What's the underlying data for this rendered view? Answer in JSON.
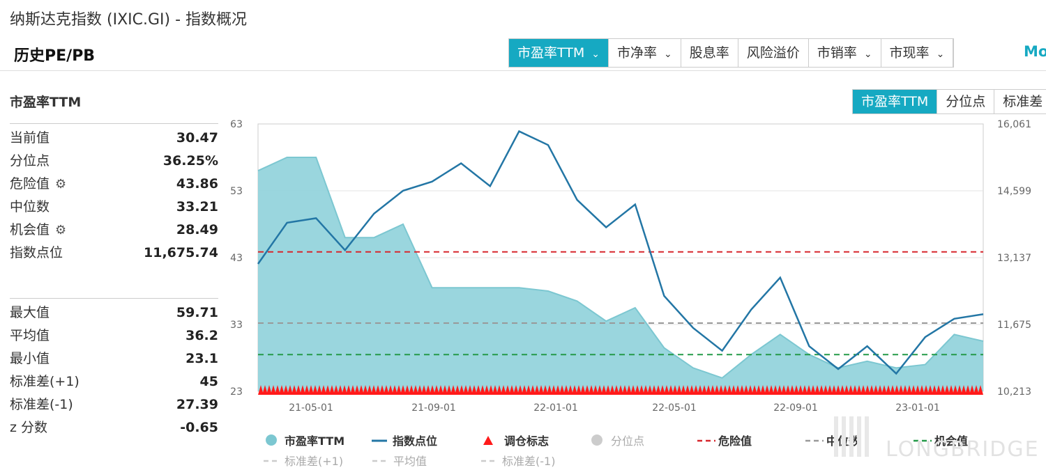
{
  "header": {
    "title": "纳斯达克指数 (IXIC.GI) - 指数概况",
    "section": "历史PE/PB",
    "metric_tabs": [
      {
        "label": "市盈率TTM",
        "chevron": true,
        "active": true
      },
      {
        "label": "市净率",
        "chevron": true,
        "active": false
      },
      {
        "label": "股息率",
        "chevron": false,
        "active": false
      },
      {
        "label": "风险溢价",
        "chevron": false,
        "active": false
      },
      {
        "label": "市销率",
        "chevron": true,
        "active": false
      },
      {
        "label": "市现率",
        "chevron": true,
        "active": false
      }
    ],
    "more": "Mo"
  },
  "view_tabs": [
    "市盈率TTM",
    "分位点",
    "标准差"
  ],
  "stats": {
    "title": "市盈率TTM",
    "current": [
      {
        "label": "当前值",
        "value": "30.47",
        "gear": false
      },
      {
        "label": "分位点",
        "value": "36.25%",
        "gear": false
      },
      {
        "label": "危险值",
        "value": "43.86",
        "gear": true
      },
      {
        "label": "中位数",
        "value": "33.21",
        "gear": false
      },
      {
        "label": "机会值",
        "value": "28.49",
        "gear": true
      },
      {
        "label": "指数点位",
        "value": "11,675.74",
        "gear": false
      }
    ],
    "summary": [
      {
        "label": "最大值",
        "value": "59.71"
      },
      {
        "label": "平均值",
        "value": "36.2"
      },
      {
        "label": "最小值",
        "value": "23.1"
      },
      {
        "label": "标准差(+1)",
        "value": "45"
      },
      {
        "label": "标准差(-1)",
        "value": "27.39"
      },
      {
        "label": "z 分数",
        "value": "-0.65"
      }
    ]
  },
  "colors": {
    "accent": "#16a9c2",
    "pe_area": "#8fd1da",
    "pe_line": "#7cc7d1",
    "index_line": "#2376a5",
    "danger": "#d7262c",
    "median": "#999999",
    "opportunity": "#249a48",
    "marker": "#ff1a1a"
  },
  "chart_data": {
    "type": "area",
    "x": [
      "2021-02",
      "2021-03",
      "2021-04",
      "2021-05",
      "2021-06",
      "2021-07",
      "2021-08",
      "2021-09",
      "2021-10",
      "2021-11",
      "2021-12",
      "2022-01",
      "2022-02",
      "2022-03",
      "2022-04",
      "2022-05",
      "2022-06",
      "2022-07",
      "2022-08",
      "2022-09",
      "2022-10",
      "2022-11",
      "2022-12",
      "2023-01",
      "2023-02",
      "2023-03"
    ],
    "series": [
      {
        "name": "市盈率TTM",
        "axis": "left",
        "values": [
          56,
          58,
          58,
          46,
          46,
          48,
          38.5,
          38.5,
          38.5,
          38.5,
          38,
          36.5,
          33.5,
          35.5,
          29.5,
          26.5,
          25,
          28.5,
          31.5,
          28.5,
          26.5,
          27.5,
          26.5,
          27,
          31.5,
          30.5
        ]
      },
      {
        "name": "指数点位",
        "axis": "right",
        "values": [
          13000,
          13900,
          14000,
          13300,
          14100,
          14600,
          14800,
          15200,
          14700,
          15900,
          15600,
          14400,
          13800,
          14300,
          12300,
          11600,
          11100,
          12000,
          12700,
          11200,
          10700,
          11200,
          10600,
          11400,
          11800,
          11900
        ]
      }
    ],
    "reference_lines": [
      {
        "name": "危险值",
        "value": 43.86
      },
      {
        "name": "中位数",
        "value": 33.21
      },
      {
        "name": "机会值",
        "value": 28.49
      }
    ],
    "left_axis": {
      "min": 23,
      "max": 63,
      "ticks": [
        "63",
        "53",
        "43",
        "33",
        "23"
      ]
    },
    "right_axis": {
      "min": 10213,
      "max": 16061,
      "ticks": [
        "16,061",
        "14,599",
        "13,137",
        "11,675",
        "10,213"
      ]
    },
    "x_ticks": [
      "21-05-01",
      "21-09-01",
      "22-01-01",
      "22-05-01",
      "22-09-01",
      "23-01-01"
    ],
    "legend": {
      "row1": [
        {
          "label": "市盈率TTM",
          "type": "dot",
          "muted": false
        },
        {
          "label": "指数点位",
          "type": "line",
          "muted": false
        },
        {
          "label": "调仓标志",
          "type": "triangle",
          "muted": false
        },
        {
          "label": "分位点",
          "type": "dot-gray",
          "muted": true
        },
        {
          "label": "危险值",
          "type": "dash-red",
          "muted": false
        },
        {
          "label": "中位数",
          "type": "dash-gray",
          "muted": false
        },
        {
          "label": "机会值",
          "type": "dash-green",
          "muted": false
        }
      ],
      "row2": [
        {
          "label": "标准差(+1)",
          "muted": true
        },
        {
          "label": "平均值",
          "muted": true
        },
        {
          "label": "标准差(-1)",
          "muted": true
        }
      ]
    },
    "watermark": "LONGBRIDGE"
  }
}
